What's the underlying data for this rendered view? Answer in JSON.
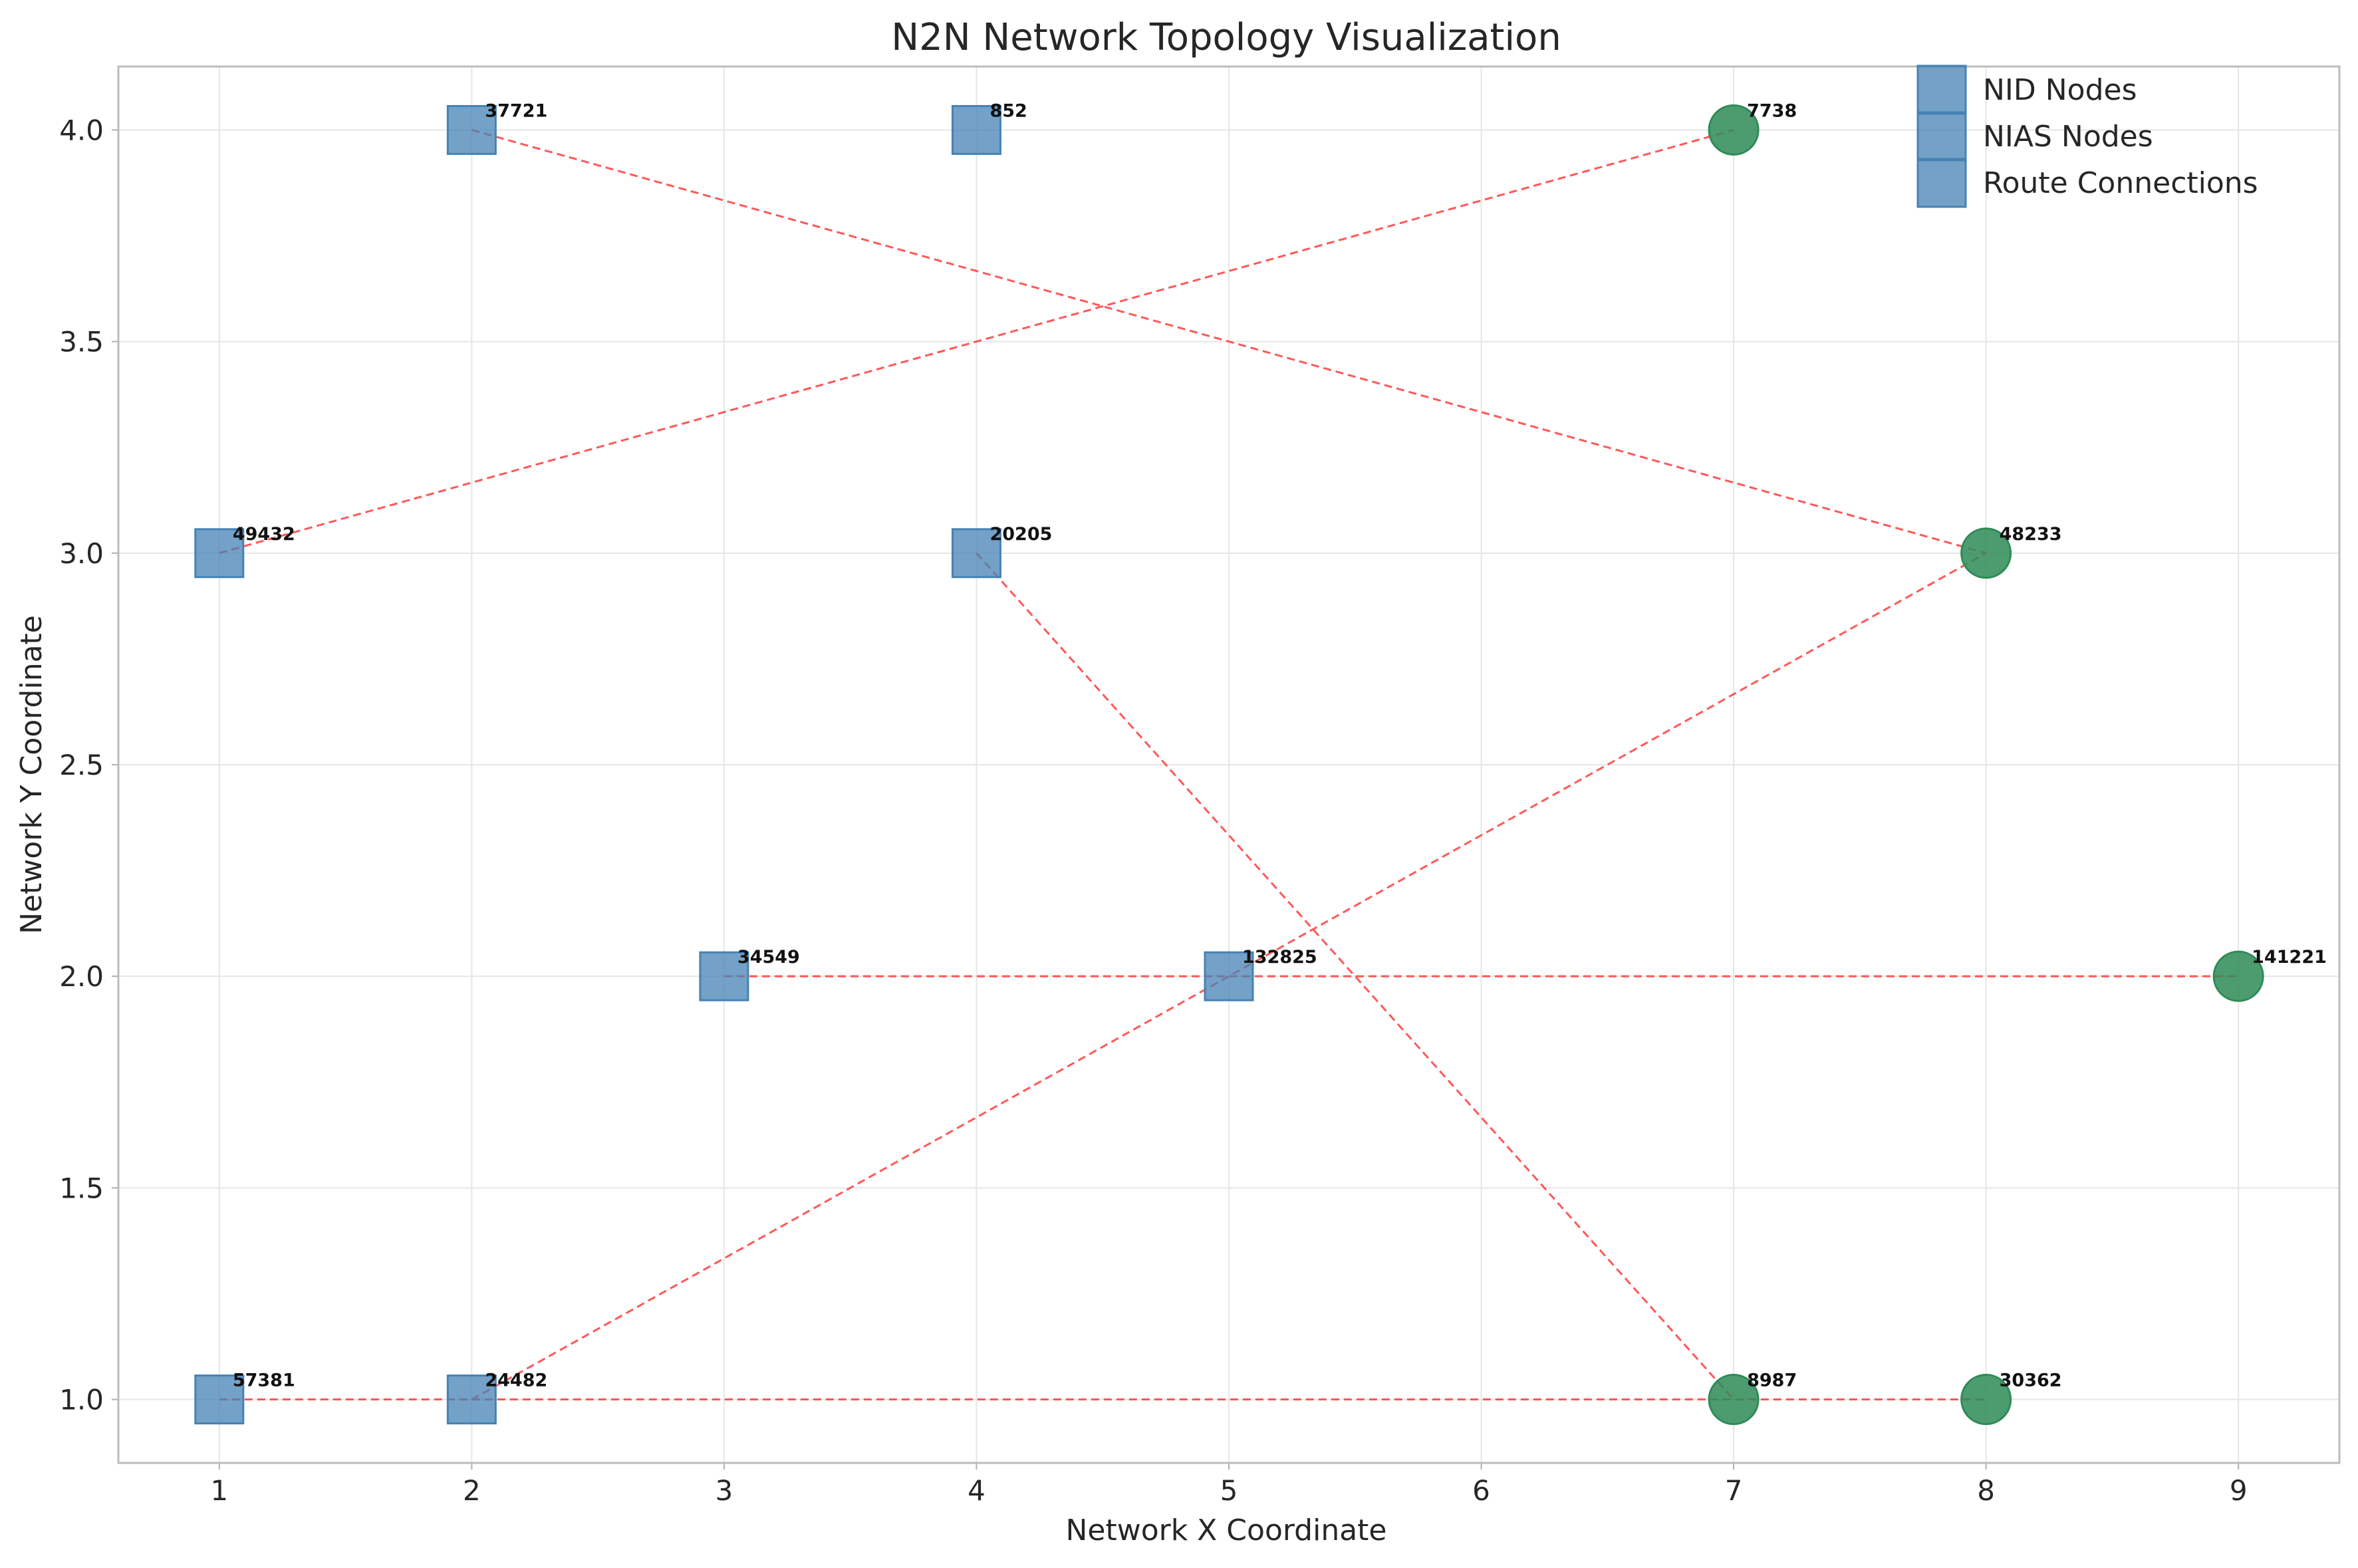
{
  "chart_data": {
    "type": "scatter",
    "title": "N2N Network Topology Visualization",
    "xlabel": "Network X Coordinate",
    "ylabel": "Network Y Coordinate",
    "xlim": [
      0.6,
      9.4
    ],
    "ylim": [
      0.85,
      4.15
    ],
    "xticks": [
      1,
      2,
      3,
      4,
      5,
      6,
      7,
      8,
      9
    ],
    "yticks": [
      1.0,
      1.5,
      2.0,
      2.5,
      3.0,
      3.5,
      4.0
    ],
    "grid": true,
    "legend_position": "top-right",
    "legend": [
      "NID Nodes",
      "NIAS Nodes",
      "Route Connections"
    ],
    "colors": {
      "nid": "#4682b4",
      "nias": "#2e8b57",
      "route": "#ff3b3b"
    },
    "nid_nodes": [
      {
        "id": "37721",
        "x": 2,
        "y": 4
      },
      {
        "id": "852",
        "x": 4,
        "y": 4
      },
      {
        "id": "49432",
        "x": 1,
        "y": 3
      },
      {
        "id": "20205",
        "x": 4,
        "y": 3
      },
      {
        "id": "34549",
        "x": 3,
        "y": 2
      },
      {
        "id": "132825",
        "x": 5,
        "y": 2
      },
      {
        "id": "57381",
        "x": 1,
        "y": 1
      },
      {
        "id": "24482",
        "x": 2,
        "y": 1
      }
    ],
    "nias_nodes": [
      {
        "id": "7738",
        "x": 7,
        "y": 4
      },
      {
        "id": "48233",
        "x": 8,
        "y": 3
      },
      {
        "id": "141221",
        "x": 9,
        "y": 2
      },
      {
        "id": "8987",
        "x": 7,
        "y": 1
      },
      {
        "id": "30362",
        "x": 8,
        "y": 1
      }
    ],
    "routes": [
      {
        "from": "49432",
        "to": "7738"
      },
      {
        "from": "37721",
        "to": "48233"
      },
      {
        "from": "24482",
        "to": "48233"
      },
      {
        "from": "20205",
        "to": "8987"
      },
      {
        "from": "34549",
        "to": "141221"
      },
      {
        "from": "57381",
        "to": "30362"
      }
    ]
  }
}
